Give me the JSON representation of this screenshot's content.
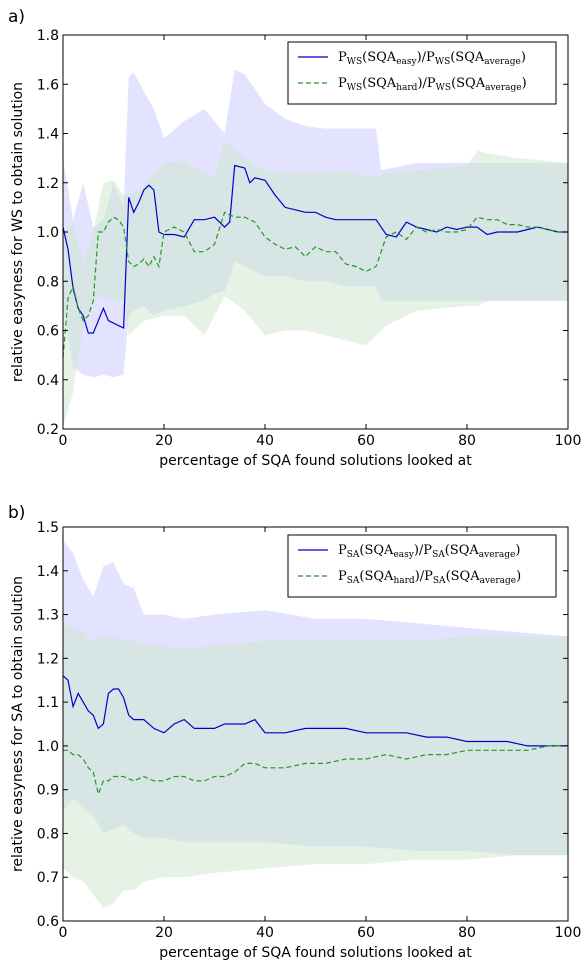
{
  "chart_data": [
    {
      "type": "line",
      "panel_label": "a)",
      "xlabel": "percentage of SQA found solutions looked at",
      "ylabel": "relative easyness for WS to obtain solution",
      "xlim": [
        0,
        100
      ],
      "ylim": [
        0.2,
        1.8
      ],
      "xticks": [
        "0",
        "20",
        "40",
        "60",
        "80",
        "100"
      ],
      "yticks": [
        "0.2",
        "0.4",
        "0.6",
        "0.8",
        "1.0",
        "1.2",
        "1.4",
        "1.6",
        "1.8"
      ],
      "grid": false,
      "legend_position": "top-right",
      "legend": [
        {
          "main": "P",
          "sub1": "WS",
          "mid1": "(SQA",
          "sub2": "easy",
          "mid2": ")/P",
          "sub3": "WS",
          "mid3": "(SQA",
          "sub4": "average",
          "end": ")"
        },
        {
          "main": "P",
          "sub1": "WS",
          "mid1": "(SQA",
          "sub2": "hard",
          "mid2": ")/P",
          "sub3": "WS",
          "mid3": "(SQA",
          "sub4": "average",
          "end": ")"
        }
      ],
      "series": [
        {
          "color": "#0000cc",
          "style": "solid",
          "x": [
            0,
            1,
            2,
            3,
            4,
            5,
            6,
            7,
            8,
            9,
            10,
            11,
            12,
            13,
            14,
            15,
            16,
            17,
            18,
            19,
            20,
            22,
            24,
            26,
            28,
            30,
            32,
            33,
            34,
            36,
            37,
            38,
            40,
            42,
            44,
            46,
            48,
            50,
            52,
            54,
            56,
            58,
            60,
            62,
            64,
            66,
            68,
            70,
            72,
            74,
            76,
            78,
            80,
            82,
            84,
            86,
            88,
            90,
            92,
            94,
            96,
            98,
            100
          ],
          "y": [
            1.02,
            0.93,
            0.77,
            0.69,
            0.66,
            0.59,
            0.59,
            0.64,
            0.69,
            0.64,
            0.63,
            0.62,
            0.61,
            1.14,
            1.08,
            1.12,
            1.17,
            1.19,
            1.17,
            1.0,
            0.99,
            0.99,
            0.98,
            1.05,
            1.05,
            1.06,
            1.02,
            1.04,
            1.27,
            1.26,
            1.2,
            1.22,
            1.21,
            1.15,
            1.1,
            1.09,
            1.08,
            1.08,
            1.06,
            1.05,
            1.05,
            1.05,
            1.05,
            1.05,
            0.99,
            0.98,
            1.04,
            1.02,
            1.01,
            1.0,
            1.02,
            1.01,
            1.02,
            1.02,
            0.99,
            1.0,
            1.0,
            1.0,
            1.01,
            1.02,
            1.01,
            1.0,
            1.0
          ]
        },
        {
          "color": "#229922",
          "style": "dashed",
          "x": [
            0,
            1,
            2,
            3,
            4,
            5,
            6,
            7,
            8,
            9,
            10,
            11,
            12,
            13,
            14,
            15,
            16,
            17,
            18,
            19,
            20,
            22,
            24,
            26,
            28,
            30,
            32,
            34,
            36,
            38,
            40,
            42,
            44,
            46,
            48,
            50,
            52,
            54,
            56,
            58,
            60,
            62,
            64,
            66,
            68,
            70,
            72,
            74,
            76,
            78,
            80,
            82,
            84,
            86,
            88,
            90,
            92,
            94,
            96,
            98,
            100
          ],
          "y": [
            0.49,
            0.73,
            0.78,
            0.69,
            0.64,
            0.66,
            0.72,
            1.0,
            1.0,
            1.04,
            1.06,
            1.05,
            1.02,
            0.88,
            0.86,
            0.87,
            0.89,
            0.86,
            0.9,
            0.86,
            1.0,
            1.02,
            1.0,
            0.92,
            0.92,
            0.95,
            1.08,
            1.06,
            1.06,
            1.04,
            0.98,
            0.95,
            0.93,
            0.94,
            0.9,
            0.94,
            0.92,
            0.92,
            0.87,
            0.86,
            0.84,
            0.86,
            0.98,
            1.0,
            0.97,
            1.02,
            1.0,
            1.01,
            1.0,
            1.0,
            1.01,
            1.06,
            1.05,
            1.05,
            1.03,
            1.03,
            1.02,
            1.02,
            1.01,
            1.0,
            1.0
          ]
        }
      ],
      "bands": [
        {
          "color": "#ccccff",
          "x": [
            0,
            2,
            4,
            6,
            8,
            10,
            12,
            13,
            14,
            16,
            18,
            20,
            24,
            28,
            30,
            32,
            34,
            36,
            40,
            44,
            48,
            52,
            56,
            60,
            62,
            63,
            70,
            80,
            90,
            100
          ],
          "upper": [
            1.3,
            1.05,
            1.2,
            1.02,
            1.05,
            1.2,
            1.1,
            1.63,
            1.65,
            1.57,
            1.5,
            1.38,
            1.45,
            1.5,
            1.45,
            1.4,
            1.66,
            1.64,
            1.52,
            1.46,
            1.43,
            1.42,
            1.42,
            1.42,
            1.42,
            1.25,
            1.28,
            1.28,
            1.28,
            1.28
          ],
          "lower": [
            0.7,
            0.45,
            0.42,
            0.41,
            0.42,
            0.41,
            0.42,
            0.66,
            0.68,
            0.7,
            0.66,
            0.68,
            0.7,
            0.72,
            0.75,
            0.76,
            0.88,
            0.86,
            0.82,
            0.82,
            0.8,
            0.8,
            0.78,
            0.78,
            0.78,
            0.72,
            0.72,
            0.72,
            0.72,
            0.72
          ]
        },
        {
          "color": "#cfe8cf",
          "x": [
            0,
            2,
            4,
            6,
            8,
            10,
            12,
            13,
            16,
            20,
            24,
            28,
            30,
            32,
            36,
            40,
            44,
            48,
            52,
            56,
            60,
            62,
            64,
            70,
            80,
            82,
            84,
            90,
            100
          ],
          "upper": [
            1.0,
            1.04,
            0.88,
            1.0,
            1.2,
            1.21,
            1.15,
            1.15,
            1.18,
            1.28,
            1.29,
            1.24,
            1.22,
            1.37,
            1.3,
            1.25,
            1.24,
            1.24,
            1.24,
            1.25,
            1.23,
            1.22,
            1.24,
            1.25,
            1.27,
            1.33,
            1.32,
            1.3,
            1.28
          ],
          "lower": [
            0.21,
            0.35,
            0.62,
            0.72,
            0.74,
            0.72,
            0.72,
            0.58,
            0.64,
            0.66,
            0.66,
            0.58,
            0.66,
            0.74,
            0.68,
            0.58,
            0.6,
            0.6,
            0.58,
            0.56,
            0.54,
            0.58,
            0.62,
            0.68,
            0.7,
            0.7,
            0.72,
            0.72,
            0.72
          ]
        }
      ]
    },
    {
      "type": "line",
      "panel_label": "b)",
      "xlabel": "percentage of SQA found solutions looked at",
      "ylabel": "relative easyness for SA to obtain solution",
      "xlim": [
        0,
        100
      ],
      "ylim": [
        0.6,
        1.5
      ],
      "xticks": [
        "0",
        "20",
        "40",
        "60",
        "80",
        "100"
      ],
      "yticks": [
        "0.6",
        "0.7",
        "0.8",
        "0.9",
        "1.0",
        "1.1",
        "1.2",
        "1.3",
        "1.4",
        "1.5"
      ],
      "grid": false,
      "legend_position": "top-right",
      "legend": [
        {
          "main": "P",
          "sub1": "SA",
          "mid1": "(SQA",
          "sub2": "easy",
          "mid2": ")/P",
          "sub3": "SA",
          "mid3": "(SQA",
          "sub4": "average",
          "end": ")"
        },
        {
          "main": "P",
          "sub1": "SA",
          "mid1": "(SQA",
          "sub2": "hard",
          "mid2": ")/P",
          "sub3": "SA",
          "mid3": "(SQA",
          "sub4": "average",
          "end": ")"
        }
      ],
      "series": [
        {
          "color": "#0000cc",
          "style": "solid",
          "x": [
            0,
            1,
            2,
            3,
            4,
            5,
            6,
            7,
            8,
            9,
            10,
            11,
            12,
            13,
            14,
            16,
            18,
            20,
            22,
            24,
            26,
            28,
            30,
            32,
            34,
            36,
            38,
            40,
            44,
            48,
            52,
            56,
            60,
            64,
            68,
            72,
            76,
            80,
            84,
            88,
            92,
            96,
            100
          ],
          "y": [
            1.16,
            1.15,
            1.09,
            1.12,
            1.1,
            1.08,
            1.07,
            1.04,
            1.05,
            1.12,
            1.13,
            1.13,
            1.11,
            1.07,
            1.06,
            1.06,
            1.04,
            1.03,
            1.05,
            1.06,
            1.04,
            1.04,
            1.04,
            1.05,
            1.05,
            1.05,
            1.06,
            1.03,
            1.03,
            1.04,
            1.04,
            1.04,
            1.03,
            1.03,
            1.03,
            1.02,
            1.02,
            1.01,
            1.01,
            1.01,
            1.0,
            1.0,
            1.0
          ]
        },
        {
          "color": "#229922",
          "style": "dashed",
          "x": [
            0,
            1,
            2,
            3,
            4,
            5,
            6,
            7,
            8,
            9,
            10,
            12,
            14,
            16,
            18,
            20,
            22,
            24,
            26,
            28,
            30,
            32,
            34,
            36,
            38,
            40,
            44,
            48,
            52,
            56,
            60,
            64,
            68,
            72,
            76,
            80,
            84,
            88,
            92,
            96,
            100
          ],
          "y": [
            0.99,
            0.99,
            0.98,
            0.98,
            0.97,
            0.95,
            0.94,
            0.89,
            0.92,
            0.92,
            0.93,
            0.93,
            0.92,
            0.93,
            0.92,
            0.92,
            0.93,
            0.93,
            0.92,
            0.92,
            0.93,
            0.93,
            0.94,
            0.96,
            0.96,
            0.95,
            0.95,
            0.96,
            0.96,
            0.97,
            0.97,
            0.98,
            0.97,
            0.98,
            0.98,
            0.99,
            0.99,
            0.99,
            0.99,
            1.0,
            1.0
          ]
        }
      ],
      "bands": [
        {
          "color": "#ccccff",
          "x": [
            0,
            2,
            4,
            6,
            8,
            10,
            12,
            14,
            16,
            20,
            24,
            30,
            40,
            50,
            60,
            70,
            80,
            90,
            100
          ],
          "upper": [
            1.47,
            1.44,
            1.38,
            1.34,
            1.41,
            1.42,
            1.37,
            1.36,
            1.3,
            1.3,
            1.29,
            1.3,
            1.31,
            1.29,
            1.29,
            1.28,
            1.27,
            1.26,
            1.25
          ],
          "lower": [
            0.85,
            0.88,
            0.86,
            0.84,
            0.8,
            0.81,
            0.82,
            0.8,
            0.79,
            0.79,
            0.78,
            0.78,
            0.78,
            0.77,
            0.77,
            0.76,
            0.76,
            0.75,
            0.75
          ]
        },
        {
          "color": "#cfe8cf",
          "x": [
            0,
            2,
            4,
            6,
            8,
            10,
            12,
            14,
            16,
            20,
            24,
            30,
            40,
            50,
            60,
            70,
            80,
            90,
            100
          ],
          "upper": [
            1.28,
            1.27,
            1.26,
            1.24,
            1.25,
            1.25,
            1.24,
            1.24,
            1.23,
            1.23,
            1.22,
            1.23,
            1.24,
            1.24,
            1.24,
            1.24,
            1.25,
            1.25,
            1.25
          ],
          "lower": [
            0.72,
            0.7,
            0.69,
            0.66,
            0.63,
            0.64,
            0.67,
            0.67,
            0.69,
            0.7,
            0.7,
            0.71,
            0.72,
            0.73,
            0.73,
            0.74,
            0.74,
            0.75,
            0.75
          ]
        }
      ]
    }
  ]
}
